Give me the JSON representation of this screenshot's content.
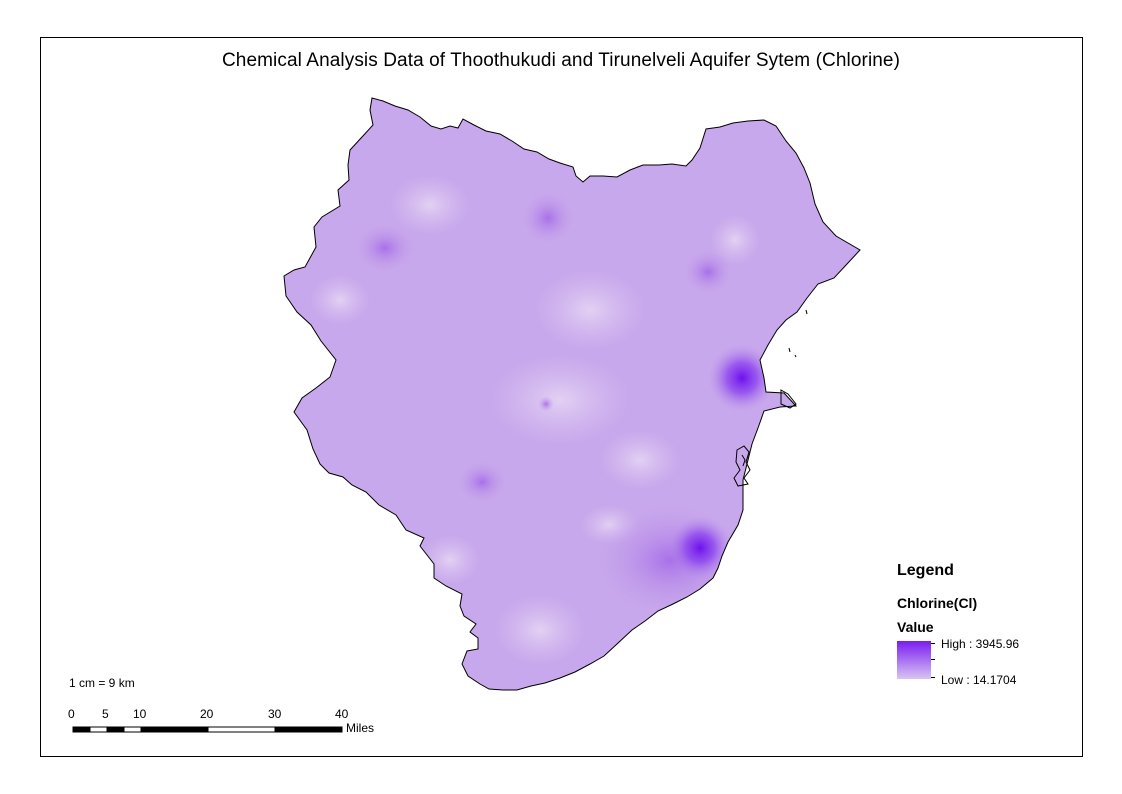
{
  "title": "Chemical Analysis Data of Thoothukudi and Tirunelveli Aquifer Sytem (Chlorine)",
  "legend": {
    "title": "Legend",
    "field": "Chlorine(Cl)",
    "value_label": "Value",
    "high_label": "High : 3945.96",
    "low_label": "Low : 14.1704",
    "colors": {
      "high": "#7a1df0",
      "low": "#d9c4f2"
    }
  },
  "scale": {
    "ratio_text": "1 cm = 9 km",
    "labels": [
      "0",
      "5",
      "10",
      "20",
      "30",
      "40"
    ],
    "unit": "Miles"
  }
}
